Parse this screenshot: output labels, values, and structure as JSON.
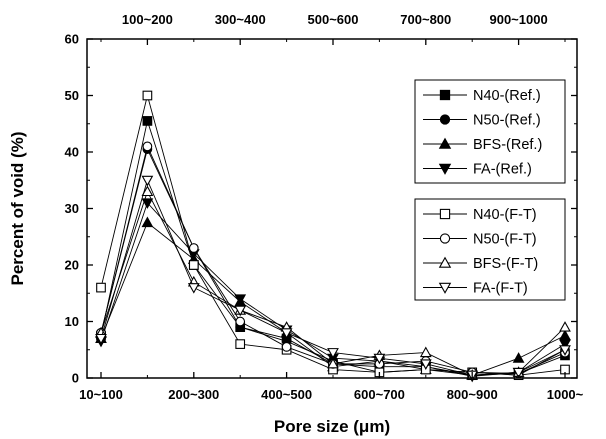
{
  "chart_data": {
    "type": "line",
    "xlabel": "Pore size (μm)",
    "ylabel": "Percent of void (%)",
    "ylim": [
      0,
      60
    ],
    "y_ticks": [
      0,
      10,
      20,
      30,
      40,
      50,
      60
    ],
    "x_bottom_ticks": [
      "10~100",
      "200~300",
      "400~500",
      "600~700",
      "800~900",
      "1000~"
    ],
    "x_top_ticks": [
      "100~200",
      "300~400",
      "500~600",
      "700~800",
      "900~1000"
    ],
    "categories": [
      "10~100",
      "100~200",
      "200~300",
      "300~400",
      "400~500",
      "500~600",
      "600~700",
      "700~800",
      "800~900",
      "900~1000",
      "1000~"
    ],
    "legend_groups": [
      [
        "N40-(Ref.)",
        "N50-(Ref.)",
        "BFS-(Ref.)",
        "FA-(Ref.)"
      ],
      [
        "N40-(F-T)",
        "N50-(F-T)",
        "BFS-(F-T)",
        "FA-(F-T)"
      ]
    ],
    "series": [
      {
        "name": "N40-(Ref.)",
        "marker": "square",
        "filled": true,
        "values": [
          7.5,
          45.5,
          20.0,
          9.0,
          7.0,
          2.5,
          2.0,
          2.0,
          0.5,
          0.8,
          4.0
        ]
      },
      {
        "name": "N50-(Ref.)",
        "marker": "circle",
        "filled": true,
        "values": [
          8.0,
          40.5,
          23.0,
          9.0,
          6.5,
          3.0,
          1.0,
          1.5,
          1.0,
          0.5,
          5.0
        ]
      },
      {
        "name": "BFS-(Ref.)",
        "marker": "triangle-up",
        "filled": true,
        "values": [
          7.0,
          27.5,
          21.0,
          13.5,
          8.0,
          2.0,
          3.0,
          1.5,
          0.5,
          3.5,
          7.5
        ]
      },
      {
        "name": "FA-(Ref.)",
        "marker": "triangle-down",
        "filled": true,
        "values": [
          6.5,
          31.0,
          22.0,
          14.0,
          8.5,
          3.5,
          3.0,
          2.0,
          0.3,
          1.0,
          6.0
        ]
      },
      {
        "name": "N40-(F-T)",
        "marker": "square",
        "filled": false,
        "values": [
          16.0,
          50.0,
          20.0,
          6.0,
          5.0,
          1.5,
          1.0,
          1.5,
          1.0,
          0.5,
          1.5
        ]
      },
      {
        "name": "N50-(F-T)",
        "marker": "circle",
        "filled": false,
        "values": [
          8.0,
          41.0,
          23.0,
          10.0,
          5.5,
          2.5,
          2.5,
          3.0,
          1.0,
          0.8,
          4.5
        ]
      },
      {
        "name": "BFS-(F-T)",
        "marker": "triangle-up",
        "filled": false,
        "values": [
          8.0,
          33.0,
          17.0,
          12.0,
          9.0,
          2.5,
          4.0,
          4.5,
          0.5,
          1.0,
          9.0
        ]
      },
      {
        "name": "FA-(F-T)",
        "marker": "triangle-down",
        "filled": false,
        "values": [
          7.0,
          35.0,
          16.0,
          12.0,
          8.0,
          4.5,
          3.5,
          2.5,
          0.5,
          1.0,
          5.0
        ]
      }
    ]
  }
}
